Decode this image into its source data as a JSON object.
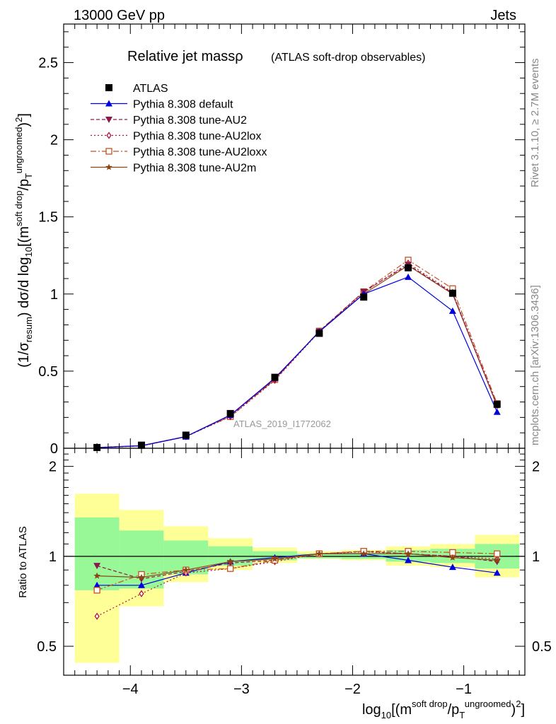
{
  "header": {
    "left": "13000 GeV pp",
    "right": "Jets"
  },
  "side_labels": {
    "rivet": "Rivet 3.1.10, ≥ 2.7M events",
    "mcplots": "mcplots.cern.ch [arXiv:1306.3436]"
  },
  "chart_data": [
    {
      "type": "line",
      "title": "Relative jet massρ",
      "subtitle": "(ATLAS soft-drop observables)",
      "analysis_label": "ATLAS_2019_I1772062",
      "ylabel": "(1/σresum) dσ/d log10[(m^soft drop/pT^ungroomed)²]",
      "xlabel": "log10[(m^soft drop/pT^ungroomed)²]",
      "xlim": [
        -4.6,
        -0.45
      ],
      "ylim": [
        0,
        2.75
      ],
      "yticks": [
        0,
        0.5,
        1,
        1.5,
        2,
        2.5
      ],
      "ytick_labels": [
        "0",
        "0.5",
        "1",
        "1.5",
        "2",
        "2.5"
      ],
      "legend_position": "top-left",
      "bin_edges": [
        -4.5,
        -4.1,
        -3.7,
        -3.3,
        -2.9,
        -2.5,
        -2.1,
        -1.7,
        -1.3,
        -0.9,
        -0.5
      ],
      "x": [
        -4.3,
        -3.9,
        -3.5,
        -3.1,
        -2.7,
        -2.3,
        -1.9,
        -1.5,
        -1.1,
        -0.7
      ],
      "series": [
        {
          "name": "ATLAS",
          "color": "#000000",
          "marker": "square-filled",
          "values": [
            0.005,
            0.02,
            0.085,
            0.225,
            0.46,
            0.745,
            0.98,
            1.17,
            1.005,
            0.285
          ]
        },
        {
          "name": "Pythia 8.308 default",
          "color": "#0000dd",
          "marker": "triangle-filled",
          "dash": "",
          "values": [
            0.004,
            0.016,
            0.075,
            0.215,
            0.455,
            0.755,
            1.0,
            1.11,
            0.89,
            0.235
          ]
        },
        {
          "name": "Pythia 8.308 tune-AU2",
          "color": "#8b1a4a",
          "marker": "triangle-down-filled",
          "dash": "5,3",
          "values": [
            0.005,
            0.017,
            0.076,
            0.213,
            0.445,
            0.758,
            1.015,
            1.19,
            1.005,
            0.275
          ]
        },
        {
          "name": "Pythia 8.308 tune-AU2lox",
          "color": "#b0143c",
          "marker": "diamond-open",
          "dash": "2,3",
          "values": [
            0.003,
            0.015,
            0.075,
            0.205,
            0.44,
            0.755,
            1.01,
            1.2,
            1.01,
            0.28
          ]
        },
        {
          "name": "Pythia 8.308 tune-AU2loxx",
          "color": "#c8501e",
          "marker": "square-open",
          "dash": "8,3,2,3",
          "values": [
            0.004,
            0.017,
            0.077,
            0.205,
            0.445,
            0.76,
            1.015,
            1.22,
            1.035,
            0.29
          ]
        },
        {
          "name": "Pythia 8.308 tune-AU2m",
          "color": "#8b4513",
          "marker": "star",
          "dash": "",
          "values": [
            0.004,
            0.017,
            0.076,
            0.215,
            0.45,
            0.758,
            1.0,
            1.185,
            1.0,
            0.275
          ]
        }
      ]
    },
    {
      "type": "line",
      "title": "",
      "ylabel": "Ratio to ATLAS",
      "xlabel": "log10[(m^soft drop/pT^ungroomed)²]",
      "xlim": [
        -4.6,
        -0.45
      ],
      "ylim": [
        0.4,
        2.3
      ],
      "log_y": true,
      "yticks": [
        0.5,
        1,
        2
      ],
      "ytick_labels": [
        "0.5",
        "1",
        "2"
      ],
      "xticks": [
        -4,
        -3,
        -2,
        -1
      ],
      "xtick_labels": [
        "−4",
        "−3",
        "−2",
        "−1"
      ],
      "bin_edges": [
        -4.5,
        -4.1,
        -3.7,
        -3.3,
        -2.9,
        -2.5,
        -2.1,
        -1.7,
        -1.3,
        -0.9,
        -0.5
      ],
      "band_inner": {
        "color": "#98f898",
        "low": [
          0.77,
          0.78,
          0.87,
          0.93,
          0.97,
          0.985,
          0.98,
          0.96,
          0.95,
          0.91
        ],
        "high": [
          1.35,
          1.22,
          1.13,
          1.08,
          1.04,
          1.02,
          1.03,
          1.05,
          1.06,
          1.1
        ]
      },
      "band_outer": {
        "color": "#ffff98",
        "low": [
          0.44,
          0.68,
          0.82,
          0.9,
          0.95,
          0.98,
          0.97,
          0.93,
          0.92,
          0.85
        ],
        "high": [
          1.62,
          1.43,
          1.26,
          1.15,
          1.07,
          1.04,
          1.05,
          1.08,
          1.1,
          1.18
        ]
      },
      "series": [
        {
          "name": "Pythia 8.308 default",
          "color": "#0000dd",
          "marker": "triangle-filled",
          "dash": "",
          "values": [
            0.8,
            0.8,
            0.88,
            0.96,
            0.99,
            1.02,
            1.02,
            0.97,
            0.92,
            0.88
          ]
        },
        {
          "name": "Pythia 8.308 tune-AU2",
          "color": "#8b1a4a",
          "marker": "triangle-down-filled",
          "dash": "5,3",
          "values": [
            0.93,
            0.84,
            0.89,
            0.95,
            0.97,
            1.02,
            1.04,
            1.02,
            1.0,
            0.96
          ]
        },
        {
          "name": "Pythia 8.308 tune-AU2lox",
          "color": "#b0143c",
          "marker": "diamond-open",
          "dash": "2,3",
          "values": [
            0.63,
            0.75,
            0.88,
            0.91,
            0.96,
            1.02,
            1.035,
            1.02,
            1.0,
            0.98
          ]
        },
        {
          "name": "Pythia 8.308 tune-AU2loxx",
          "color": "#c8501e",
          "marker": "square-open",
          "dash": "8,3,2,3",
          "values": [
            0.77,
            0.87,
            0.9,
            0.91,
            0.97,
            1.02,
            1.04,
            1.04,
            1.03,
            1.02
          ]
        },
        {
          "name": "Pythia 8.308 tune-AU2m",
          "color": "#8b4513",
          "marker": "star",
          "dash": "",
          "values": [
            0.86,
            0.85,
            0.9,
            0.96,
            0.98,
            1.02,
            1.02,
            1.02,
            0.99,
            0.97
          ]
        }
      ]
    }
  ]
}
